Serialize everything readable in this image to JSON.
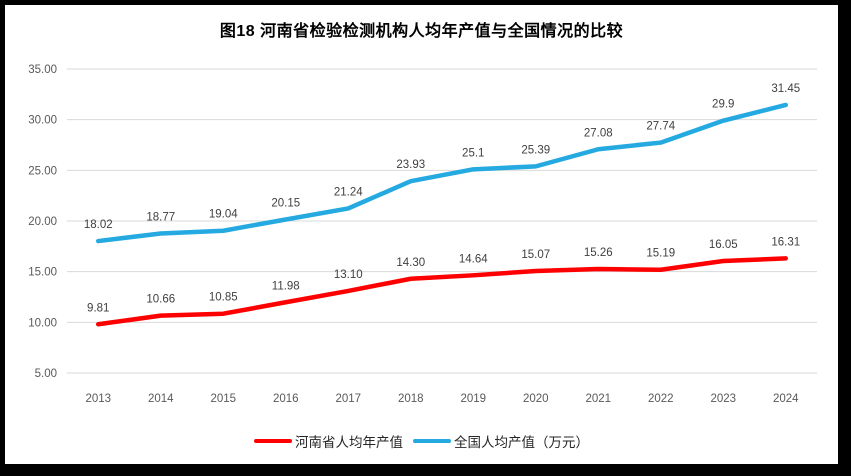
{
  "chart_data": {
    "type": "line",
    "title": "图18  河南省检验检测机构人均年产值与全国情况的比较",
    "categories": [
      "2013",
      "2014",
      "2015",
      "2016",
      "2017",
      "2018",
      "2019",
      "2020",
      "2021",
      "2022",
      "2023",
      "2024"
    ],
    "series": [
      {
        "name": "河南省人均年产值",
        "color": "#FF0000",
        "values": [
          9.81,
          10.66,
          10.85,
          11.98,
          13.1,
          14.3,
          14.64,
          15.07,
          15.26,
          15.19,
          16.05,
          16.31
        ],
        "labels": [
          "9.81",
          "10.66",
          "10.85",
          "11.98",
          "13.10",
          "14.30",
          "14.64",
          "15.07",
          "15.26",
          "15.19",
          "16.05",
          "16.31"
        ]
      },
      {
        "name": "全国人均产值（万元）",
        "color": "#24A9E1",
        "values": [
          18.02,
          18.77,
          19.04,
          20.15,
          21.24,
          23.93,
          25.1,
          25.39,
          27.08,
          27.74,
          29.9,
          31.45
        ],
        "labels": [
          "18.02",
          "18.77",
          "19.04",
          "20.15",
          "21.24",
          "23.93",
          "25.1",
          "25.39",
          "27.08",
          "27.74",
          "29.9",
          "31.45"
        ]
      }
    ],
    "ylim": [
      5,
      35
    ],
    "ytick_step": 5,
    "ytick_labels": [
      "5.00",
      "10.00",
      "15.00",
      "20.00",
      "25.00",
      "30.00",
      "35.00"
    ],
    "xlabel": "",
    "ylabel": "",
    "grid": true,
    "legend_position": "bottom",
    "colors": {
      "grid": "#D9D9D9",
      "axis_text": "#595959",
      "data_label_text": "#3F3F3F",
      "frame": "#000000",
      "background": "#FFFFFF"
    }
  }
}
